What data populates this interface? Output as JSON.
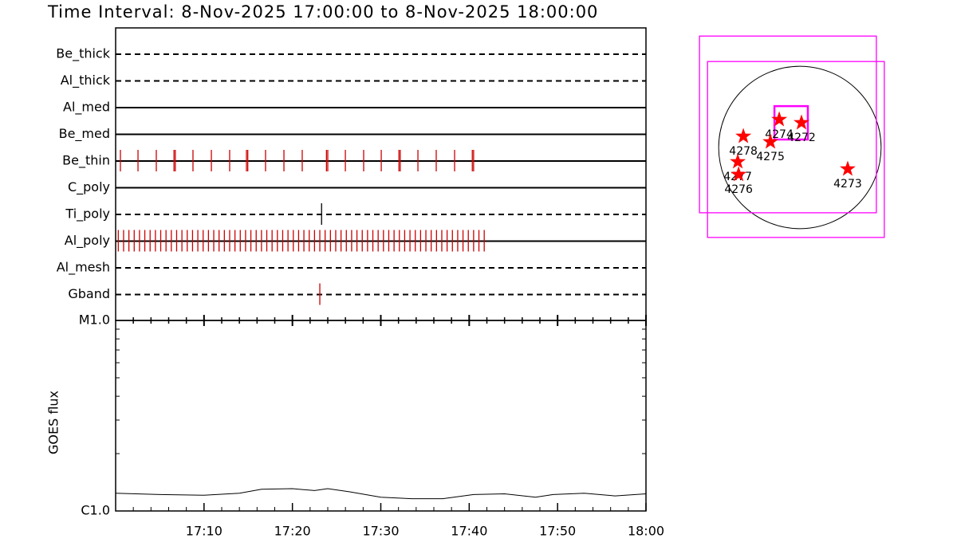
{
  "chart_data": [
    {
      "type": "timeline",
      "title": "Time Interval:  8-Nov-2025 17:00:00 to  8-Nov-2025 18:00:00",
      "xlim": [
        0,
        60
      ],
      "categories": [
        "Be_thick",
        "Al_thick",
        "Al_med",
        "Be_med",
        "Be_thin",
        "C_poly",
        "Ti_poly",
        "Al_poly",
        "Al_mesh",
        "Gband"
      ],
      "line_styles": [
        "dashed",
        "dashed",
        "solid",
        "solid",
        "solid",
        "solid",
        "dashed",
        "solid",
        "dashed",
        "dashed"
      ],
      "event_colors": [
        "#cc0000",
        "#cc0000",
        "#cc0000",
        "#cc0000",
        "#cc0000",
        "#cc0000",
        "#000000",
        "#cc0000",
        "#cc0000",
        "#cc0000"
      ],
      "events": [
        [],
        [],
        [],
        [],
        [
          0.54,
          2.53,
          4.6,
          6.6,
          6.75,
          8.75,
          10.83,
          12.9,
          14.8,
          14.95,
          16.96,
          19.04,
          21.11,
          23.85,
          24.0,
          25.99,
          28.06,
          30.05,
          32.05,
          32.2,
          34.2,
          36.27,
          38.35,
          40.35,
          40.5
        ],
        [],
        [
          23.3
        ],
        [
          0.3,
          0.9,
          1.5,
          2.1,
          2.7,
          3.3,
          3.9,
          4.5,
          5.1,
          5.7,
          6.3,
          6.9,
          7.5,
          8.1,
          8.7,
          9.3,
          9.9,
          10.5,
          11.1,
          11.7,
          12.3,
          12.9,
          13.5,
          14.1,
          14.7,
          15.3,
          15.9,
          16.5,
          17.1,
          17.7,
          18.3,
          18.9,
          19.5,
          20.1,
          20.7,
          21.3,
          21.9,
          22.5,
          23.1,
          23.7,
          24.3,
          24.9,
          25.5,
          26.1,
          26.7,
          27.3,
          27.9,
          28.5,
          29.1,
          29.7,
          30.3,
          30.9,
          31.5,
          32.1,
          32.7,
          33.3,
          33.9,
          34.5,
          35.1,
          35.7,
          36.3,
          36.9,
          37.5,
          38.1,
          38.7,
          39.3,
          39.9,
          40.5,
          41.1,
          41.7
        ],
        [],
        [
          23.1
        ]
      ]
    },
    {
      "type": "line",
      "ylabel": "GOES flux",
      "log_scale": true,
      "color": "#000000",
      "x": [
        0,
        5,
        10,
        14,
        16.5,
        20,
        22.5,
        24,
        26.5,
        30,
        33.5,
        37,
        40.5,
        44,
        47.5,
        49.5,
        53,
        56.5,
        60
      ],
      "values": [
        1.24e-06,
        1.22e-06,
        1.21e-06,
        1.24e-06,
        1.3e-06,
        1.31e-06,
        1.28e-06,
        1.31e-06,
        1.26e-06,
        1.18e-06,
        1.16e-06,
        1.16e-06,
        1.22e-06,
        1.23e-06,
        1.18e-06,
        1.22e-06,
        1.24e-06,
        1.2e-06,
        1.23e-06
      ],
      "xlim": [
        0,
        60
      ],
      "xticks": [
        {
          "value": 10,
          "label": "17:10"
        },
        {
          "value": 20,
          "label": "17:20"
        },
        {
          "value": 30,
          "label": "17:30"
        },
        {
          "value": 40,
          "label": "17:40"
        },
        {
          "value": 50,
          "label": "17:50"
        },
        {
          "value": 60,
          "label": "18:00"
        }
      ],
      "xminor_ticks": [
        2,
        4,
        6,
        8,
        12,
        14,
        16,
        18,
        22,
        24,
        26,
        28,
        32,
        34,
        36,
        38,
        42,
        44,
        46,
        48,
        52,
        54,
        56,
        58
      ],
      "ylim": [
        1e-06,
        1e-05
      ],
      "yticks": [
        {
          "value": 1e-06,
          "label": "C1.0"
        },
        {
          "value": 1e-05,
          "label": "M1.0"
        }
      ],
      "yminor_ticks": [
        2e-06,
        3e-06,
        4e-06,
        5e-06,
        6e-06,
        7e-06,
        8e-06,
        9e-06
      ]
    },
    {
      "type": "map",
      "sun_radius": 970,
      "fov_color": "#ff00ff",
      "fov": [
        [
          -1199,
          913,
          -780,
          1331
        ],
        [
          -1103,
          1008,
          -1075,
          1027
        ],
        [
          -304,
          95,
          95,
          494
        ]
      ],
      "point_color": "#ff0000",
      "points": [
        {
          "label": "4274",
          "x": -247,
          "y": 333
        },
        {
          "label": "4272",
          "x": 19,
          "y": 295
        },
        {
          "label": "4278",
          "x": -675,
          "y": 133
        },
        {
          "label": "4275",
          "x": -352,
          "y": 67
        },
        {
          "label": "4277",
          "x": -742,
          "y": -171
        },
        {
          "label": "4276",
          "x": -732,
          "y": -323
        },
        {
          "label": "4273",
          "x": 571,
          "y": -257
        }
      ]
    }
  ]
}
